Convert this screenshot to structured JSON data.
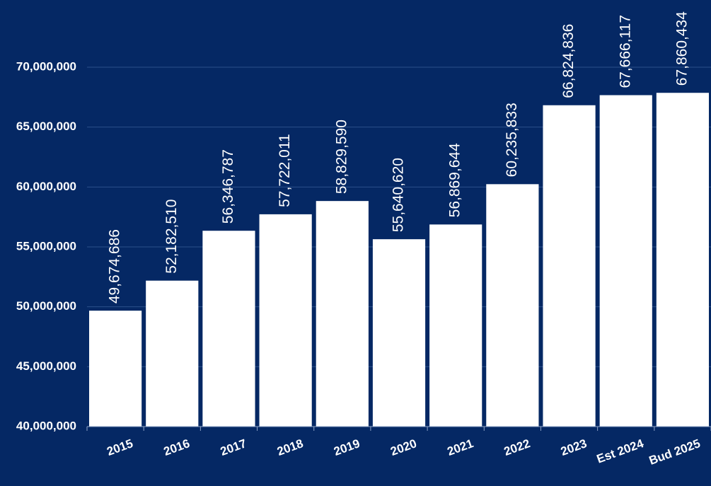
{
  "chart_data": {
    "type": "bar",
    "title": "",
    "xlabel": "",
    "ylabel": "",
    "ylim": [
      40000000,
      70000000
    ],
    "grid": true,
    "categories": [
      "2015",
      "2016",
      "2017",
      "2018",
      "2019",
      "2020",
      "2021",
      "2022",
      "2023",
      "Est 2024",
      "Bud 2025"
    ],
    "values": [
      49674686,
      52182510,
      56346787,
      57722011,
      58829590,
      55640620,
      56869644,
      60235833,
      66824836,
      67666117,
      67860434
    ],
    "value_labels": [
      "49,674,686",
      "52,182,510",
      "56,346,787",
      "57,722,011",
      "58,829,590",
      "55,640,620",
      "56,869,644",
      "60,235,833",
      "66,824,836",
      "67,666,117",
      "67,860,434"
    ],
    "yticks": [
      40000000,
      45000000,
      50000000,
      55000000,
      60000000,
      65000000,
      70000000
    ],
    "ytick_labels": [
      "40,000,000",
      "45,000,000",
      "50,000,000",
      "55,000,000",
      "60,000,000",
      "65,000,000",
      "70,000,000"
    ]
  },
  "colors": {
    "background": "#052864",
    "bar": "#ffffff",
    "text": "#ffffff",
    "gridline": "#2b4f8a",
    "axis": "#8ea3c7"
  }
}
